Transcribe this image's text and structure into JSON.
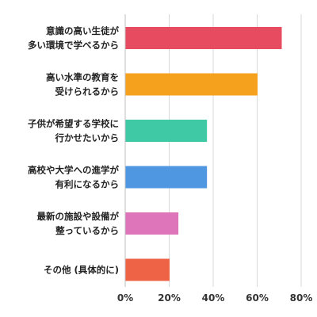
{
  "chart_data": {
    "type": "bar",
    "orientation": "horizontal",
    "categories": [
      [
        "意識の高い生徒が",
        "多い環境で学べるから"
      ],
      [
        "高い水準の教育を",
        "受けられるから"
      ],
      [
        "子供が希望する学校に",
        "行かせたいから"
      ],
      [
        "高校や大学への進学が",
        "有利になるから"
      ],
      [
        "最新の施設や設備が",
        "整っているから"
      ],
      [
        "その他 (具体的に)"
      ]
    ],
    "values": [
      71,
      60,
      37,
      37,
      24,
      20
    ],
    "colors": [
      "#e64b5f",
      "#f5a11e",
      "#3fc9a4",
      "#4f97e0",
      "#de74b9",
      "#ee6346"
    ],
    "xlim": [
      0,
      80
    ],
    "xticks": [
      "0%",
      "20%",
      "40%",
      "60%",
      "80%"
    ],
    "grid": true,
    "title": "",
    "xlabel": "",
    "ylabel": ""
  }
}
